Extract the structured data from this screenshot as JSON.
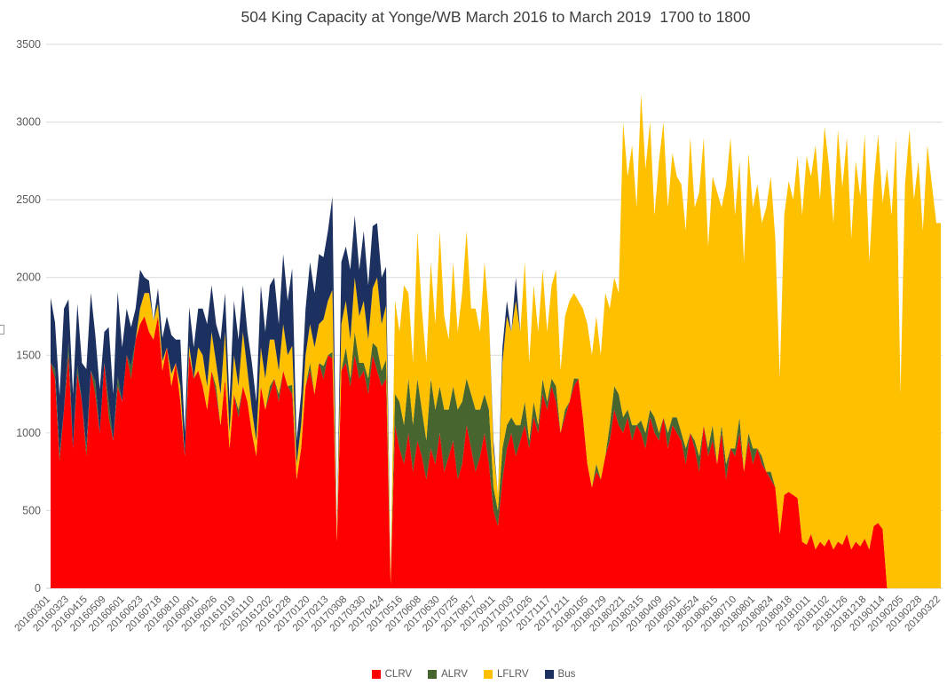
{
  "title": "504 King Capacity at Yonge/WB March 2016 to March 2019  1700 to 1800",
  "colors": {
    "clrv": "#FE0000",
    "alrv": "#46652F",
    "lflrv": "#FFC000",
    "bus": "#1D3160",
    "gridline": "#D9D9D9",
    "axis_line": "#CFCFCF",
    "tick_label": "#595959",
    "title_text": "#3F3F3F"
  },
  "legend": [
    {
      "label": "CLRV",
      "color": "#FE0000"
    },
    {
      "label": "ALRV",
      "color": "#46652F"
    },
    {
      "label": "LFLRV",
      "color": "#FFC000"
    },
    {
      "label": "Bus",
      "color": "#1D3160"
    }
  ],
  "chart_data": {
    "type": "area",
    "stacked": true,
    "title": "504 King Capacity at Yonge/WB March 2016 to March 2019  1700 to 1800",
    "xlabel": "",
    "ylabel": "",
    "ylim": [
      0,
      3500
    ],
    "ytick_step": 500,
    "yticks": [
      0,
      500,
      1000,
      1500,
      2000,
      2500,
      3000,
      3500
    ],
    "grid": true,
    "legend_position": "bottom",
    "x_tick_labels": [
      "20160301",
      "20160323",
      "20160415",
      "20160509",
      "20160601",
      "20160623",
      "20160718",
      "20160810",
      "20160901",
      "20160926",
      "20161019",
      "20161110",
      "20161202",
      "20161228",
      "20170120",
      "20170213",
      "20170308",
      "20170330",
      "20170424",
      "20170516",
      "20170608",
      "20170630",
      "20170725",
      "20170817",
      "20170911",
      "20171003",
      "20171026",
      "20171117",
      "20171211",
      "20180105",
      "20180129",
      "20180221",
      "20180315",
      "20180409",
      "20180501",
      "20180524",
      "20180615",
      "20180710",
      "20180801",
      "20180824",
      "20180918",
      "20181011",
      "20181102",
      "20181126",
      "20181218",
      "20190114",
      "20190205",
      "20190228",
      "20190322"
    ],
    "note": "200 evenly spaced daily samples spanning 20160301 to 20190322; tick i sits at fraction i/48 of the x range; values estimated from gridlines, capacity units",
    "series": [
      {
        "name": "CLRV",
        "color": "#FE0000",
        "values": [
          1450,
          1350,
          820,
          1150,
          1500,
          900,
          1380,
          1200,
          850,
          1400,
          1250,
          1000,
          1450,
          1100,
          950,
          1300,
          1200,
          1500,
          1350,
          1600,
          1700,
          1750,
          1650,
          1600,
          1750,
          1400,
          1550,
          1300,
          1450,
          1200,
          850,
          1500,
          1350,
          1400,
          1300,
          1150,
          1400,
          1250,
          1050,
          1350,
          900,
          1250,
          1100,
          1300,
          1200,
          1000,
          850,
          1300,
          1150,
          1250,
          1350,
          1200,
          1400,
          1300,
          1250,
          700,
          900,
          1300,
          1400,
          1250,
          1450,
          1350,
          1500,
          1480,
          300,
          1400,
          1450,
          1300,
          1500,
          1350,
          1400,
          1250,
          1500,
          1400,
          1300,
          1350,
          30,
          1050,
          900,
          800,
          1000,
          750,
          950,
          850,
          700,
          900,
          800,
          1000,
          750,
          850,
          950,
          700,
          800,
          1050,
          900,
          750,
          850,
          1000,
          800,
          500,
          400,
          700,
          900,
          1000,
          850,
          950,
          1050,
          900,
          1100,
          1000,
          1250,
          1150,
          1300,
          1200,
          1000,
          1100,
          1200,
          1300,
          1350,
          1100,
          800,
          650,
          750,
          700,
          850,
          950,
          1150,
          1050,
          1000,
          1100,
          950,
          1050,
          1000,
          900,
          1100,
          1000,
          950,
          1100,
          900,
          1050,
          1000,
          950,
          800,
          1000,
          900,
          750,
          1050,
          850,
          950,
          800,
          1000,
          700,
          900,
          850,
          1000,
          750,
          950,
          800,
          900,
          800,
          750,
          700,
          650,
          350,
          600,
          620,
          600,
          580,
          300,
          280,
          350,
          250,
          300,
          270,
          320,
          250,
          300,
          280,
          350,
          250,
          300,
          270,
          320,
          250,
          400,
          420,
          380,
          0,
          0,
          0,
          0,
          0,
          0,
          0,
          0,
          0,
          0,
          0,
          0,
          0
        ]
      },
      {
        "name": "ALRV",
        "color": "#46652F",
        "values": [
          0,
          60,
          40,
          0,
          80,
          0,
          50,
          0,
          60,
          0,
          80,
          0,
          0,
          100,
          0,
          60,
          0,
          0,
          80,
          0,
          0,
          0,
          0,
          0,
          0,
          0,
          0,
          0,
          0,
          0,
          0,
          0,
          0,
          0,
          0,
          0,
          0,
          50,
          0,
          0,
          0,
          0,
          50,
          0,
          0,
          0,
          0,
          0,
          0,
          50,
          0,
          50,
          0,
          0,
          60,
          0,
          0,
          0,
          50,
          0,
          0,
          80,
          0,
          40,
          0,
          0,
          100,
          50,
          150,
          100,
          50,
          100,
          80,
          150,
          100,
          120,
          0,
          200,
          300,
          250,
          350,
          300,
          400,
          300,
          250,
          450,
          350,
          300,
          400,
          300,
          350,
          450,
          400,
          300,
          350,
          400,
          300,
          250,
          350,
          150,
          100,
          200,
          150,
          100,
          200,
          100,
          150,
          50,
          100,
          50,
          100,
          50,
          50,
          100,
          0,
          50,
          0,
          50,
          0,
          0,
          0,
          0,
          50,
          0,
          0,
          100,
          150,
          200,
          100,
          50,
          100,
          0,
          80,
          100,
          50,
          100,
          50,
          0,
          100,
          50,
          100,
          50,
          100,
          0,
          50,
          100,
          0,
          50,
          100,
          0,
          50,
          100,
          0,
          50,
          100,
          0,
          50,
          100,
          0,
          50,
          0,
          50,
          0,
          0,
          0,
          0,
          0,
          0,
          0,
          0,
          0,
          0,
          0,
          0,
          0,
          0,
          0,
          0,
          0,
          0,
          0,
          0,
          0,
          0,
          0,
          0,
          0,
          0,
          0,
          0,
          0,
          0,
          0,
          0,
          0,
          0,
          0,
          0,
          0,
          0
        ]
      },
      {
        "name": "LFLRV",
        "color": "#FFC000",
        "values": [
          0,
          0,
          0,
          0,
          0,
          0,
          0,
          0,
          0,
          0,
          0,
          0,
          0,
          0,
          0,
          0,
          0,
          0,
          0,
          0,
          100,
          150,
          250,
          120,
          80,
          60,
          0,
          80,
          0,
          100,
          0,
          60,
          0,
          150,
          200,
          150,
          250,
          150,
          200,
          300,
          100,
          250,
          150,
          350,
          200,
          150,
          100,
          250,
          200,
          300,
          250,
          150,
          300,
          200,
          250,
          100,
          150,
          200,
          250,
          300,
          250,
          300,
          350,
          400,
          50,
          300,
          300,
          250,
          350,
          300,
          400,
          250,
          350,
          450,
          300,
          350,
          60,
          600,
          450,
          900,
          550,
          400,
          950,
          650,
          500,
          750,
          550,
          1000,
          600,
          450,
          800,
          500,
          700,
          950,
          550,
          650,
          500,
          850,
          600,
          250,
          100,
          550,
          700,
          550,
          800,
          600,
          900,
          500,
          750,
          600,
          700,
          450,
          600,
          750,
          400,
          600,
          650,
          550,
          500,
          700,
          900,
          850,
          950,
          800,
          1050,
          750,
          700,
          650,
          1900,
          1500,
          1800,
          1400,
          2100,
          1700,
          1850,
          1300,
          1750,
          1900,
          1450,
          1700,
          1550,
          1600,
          1400,
          1900,
          1500,
          1700,
          1850,
          1300,
          1600,
          1750,
          1400,
          1800,
          2000,
          1500,
          1650,
          1350,
          1800,
          1550,
          1700,
          1500,
          1700,
          1900,
          1600,
          1000,
          1800,
          2000,
          1900,
          2200,
          2100,
          2500,
          2300,
          2600,
          2200,
          2700,
          2400,
          2100,
          2650,
          2300,
          2550,
          2000,
          2450,
          2250,
          2600,
          1850,
          2200,
          2500,
          2100,
          2700,
          2400,
          2900,
          1250,
          2600,
          2950,
          2500,
          2750,
          2300,
          2850,
          2600,
          2350,
          2350
        ]
      },
      {
        "name": "Bus",
        "color": "#1D3160",
        "values": [
          420,
          300,
          380,
          650,
          280,
          350,
          400,
          250,
          500,
          500,
          300,
          280,
          200,
          480,
          300,
          550,
          350,
          300,
          250,
          200,
          250,
          100,
          80,
          0,
          100,
          150,
          200,
          250,
          150,
          300,
          150,
          250,
          200,
          250,
          300,
          400,
          300,
          250,
          350,
          250,
          200,
          350,
          300,
          300,
          250,
          300,
          250,
          400,
          300,
          350,
          400,
          300,
          450,
          350,
          500,
          150,
          200,
          300,
          400,
          350,
          450,
          400,
          450,
          600,
          0,
          400,
          350,
          450,
          400,
          300,
          450,
          350,
          400,
          350,
          300,
          250,
          0,
          0,
          0,
          0,
          0,
          0,
          0,
          0,
          0,
          0,
          0,
          0,
          0,
          0,
          0,
          0,
          0,
          0,
          0,
          0,
          0,
          0,
          0,
          50,
          0,
          100,
          100,
          0,
          150,
          0,
          0,
          0,
          0,
          0,
          0,
          0,
          0,
          0,
          0,
          0,
          0,
          0,
          0,
          0,
          0,
          0,
          0,
          0,
          0,
          0,
          0,
          0,
          0,
          0,
          0,
          0,
          0,
          0,
          0,
          0,
          0,
          0,
          0,
          0,
          0,
          0,
          0,
          0,
          0,
          0,
          0,
          0,
          0,
          0,
          0,
          0,
          0,
          0,
          0,
          0,
          0,
          0,
          0,
          0,
          0,
          0,
          0,
          0,
          0,
          0,
          0,
          0,
          0,
          0,
          0,
          0,
          0,
          0,
          0,
          0,
          0,
          0,
          0,
          0,
          0,
          0,
          0,
          0,
          0,
          0,
          0,
          0,
          0,
          0,
          0,
          0,
          0,
          0,
          0,
          0,
          0,
          0,
          0,
          0
        ]
      }
    ]
  }
}
